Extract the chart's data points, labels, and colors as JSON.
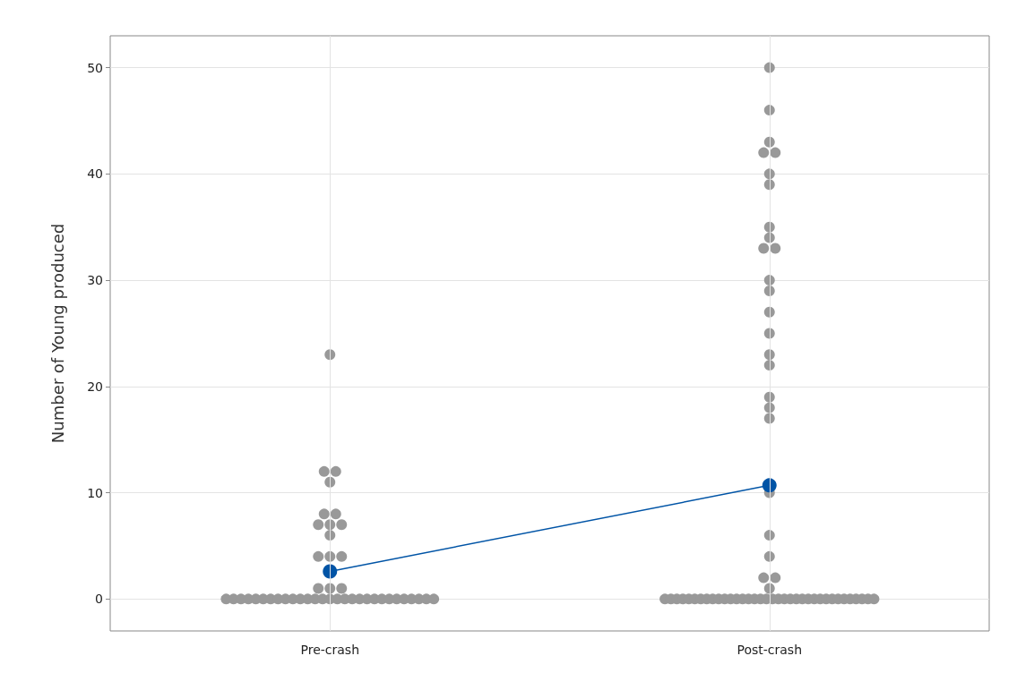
{
  "chart_data": {
    "type": "scatter",
    "ylabel": "Number of Young produced",
    "categories": [
      "Pre-crash",
      "Post-crash"
    ],
    "series": [
      {
        "color": "#999999",
        "x": [
          "Pre-crash",
          "Pre-crash",
          "Pre-crash",
          "Pre-crash",
          "Pre-crash",
          "Pre-crash",
          "Pre-crash",
          "Pre-crash",
          "Pre-crash",
          "Pre-crash",
          "Pre-crash",
          "Pre-crash",
          "Pre-crash",
          "Pre-crash",
          "Pre-crash",
          "Pre-crash",
          "Pre-crash",
          "Pre-crash",
          "Pre-crash",
          "Pre-crash",
          "Pre-crash",
          "Pre-crash",
          "Pre-crash",
          "Pre-crash",
          "Pre-crash",
          "Pre-crash",
          "Pre-crash",
          "Pre-crash",
          "Pre-crash",
          "Pre-crash",
          "Pre-crash",
          "Pre-crash",
          "Pre-crash",
          "Pre-crash",
          "Pre-crash",
          "Pre-crash",
          "Pre-crash",
          "Pre-crash",
          "Pre-crash",
          "Pre-crash",
          "Pre-crash",
          "Pre-crash",
          "Pre-crash",
          "Pre-crash",
          "Pre-crash",
          "Post-crash",
          "Post-crash",
          "Post-crash",
          "Post-crash",
          "Post-crash",
          "Post-crash",
          "Post-crash",
          "Post-crash",
          "Post-crash",
          "Post-crash",
          "Post-crash",
          "Post-crash",
          "Post-crash",
          "Post-crash",
          "Post-crash",
          "Post-crash",
          "Post-crash",
          "Post-crash",
          "Post-crash",
          "Post-crash",
          "Post-crash",
          "Post-crash",
          "Post-crash",
          "Post-crash",
          "Post-crash",
          "Post-crash",
          "Post-crash",
          "Post-crash",
          "Post-crash",
          "Post-crash",
          "Post-crash",
          "Post-crash",
          "Post-crash",
          "Post-crash",
          "Post-crash",
          "Post-crash",
          "Post-crash",
          "Post-crash",
          "Post-crash",
          "Post-crash",
          "Post-crash",
          "Post-crash",
          "Post-crash",
          "Post-crash",
          "Post-crash",
          "Post-crash",
          "Post-crash",
          "Post-crash",
          "Post-crash",
          "Post-crash",
          "Post-crash",
          "Post-crash",
          "Post-crash",
          "Post-crash",
          "Post-crash",
          "Post-crash",
          "Post-crash",
          "Post-crash",
          "Post-crash",
          "Post-crash",
          "Post-crash",
          "Post-crash"
        ],
        "values": [
          23,
          12,
          12,
          11,
          8,
          8,
          7,
          7,
          7,
          6,
          4,
          4,
          4,
          1,
          1,
          1,
          0,
          0,
          0,
          0,
          0,
          0,
          0,
          0,
          0,
          0,
          0,
          0,
          0,
          0,
          0,
          0,
          0,
          0,
          0,
          0,
          0,
          0,
          0,
          0,
          0,
          0,
          0,
          0,
          0,
          50,
          46,
          43,
          42,
          42,
          40,
          39,
          35,
          34,
          33,
          33,
          30,
          29,
          27,
          25,
          23,
          22,
          19,
          18,
          17,
          10,
          6,
          4,
          2,
          2,
          1,
          0,
          0,
          0,
          0,
          0,
          0,
          0,
          0,
          0,
          0,
          0,
          0,
          0,
          0,
          0,
          0,
          0,
          0,
          0,
          0,
          0,
          0,
          0,
          0,
          0,
          0,
          0,
          0,
          0,
          0,
          0,
          0,
          0,
          0,
          0,
          0
        ]
      },
      {
        "type": "line",
        "color": "#0054a6",
        "marker": "circle",
        "values": [
          2.6,
          10.7
        ]
      }
    ],
    "ylim": [
      -3,
      53
    ],
    "yticks": [
      0,
      10,
      20,
      30,
      40,
      50
    ],
    "grid": true
  }
}
